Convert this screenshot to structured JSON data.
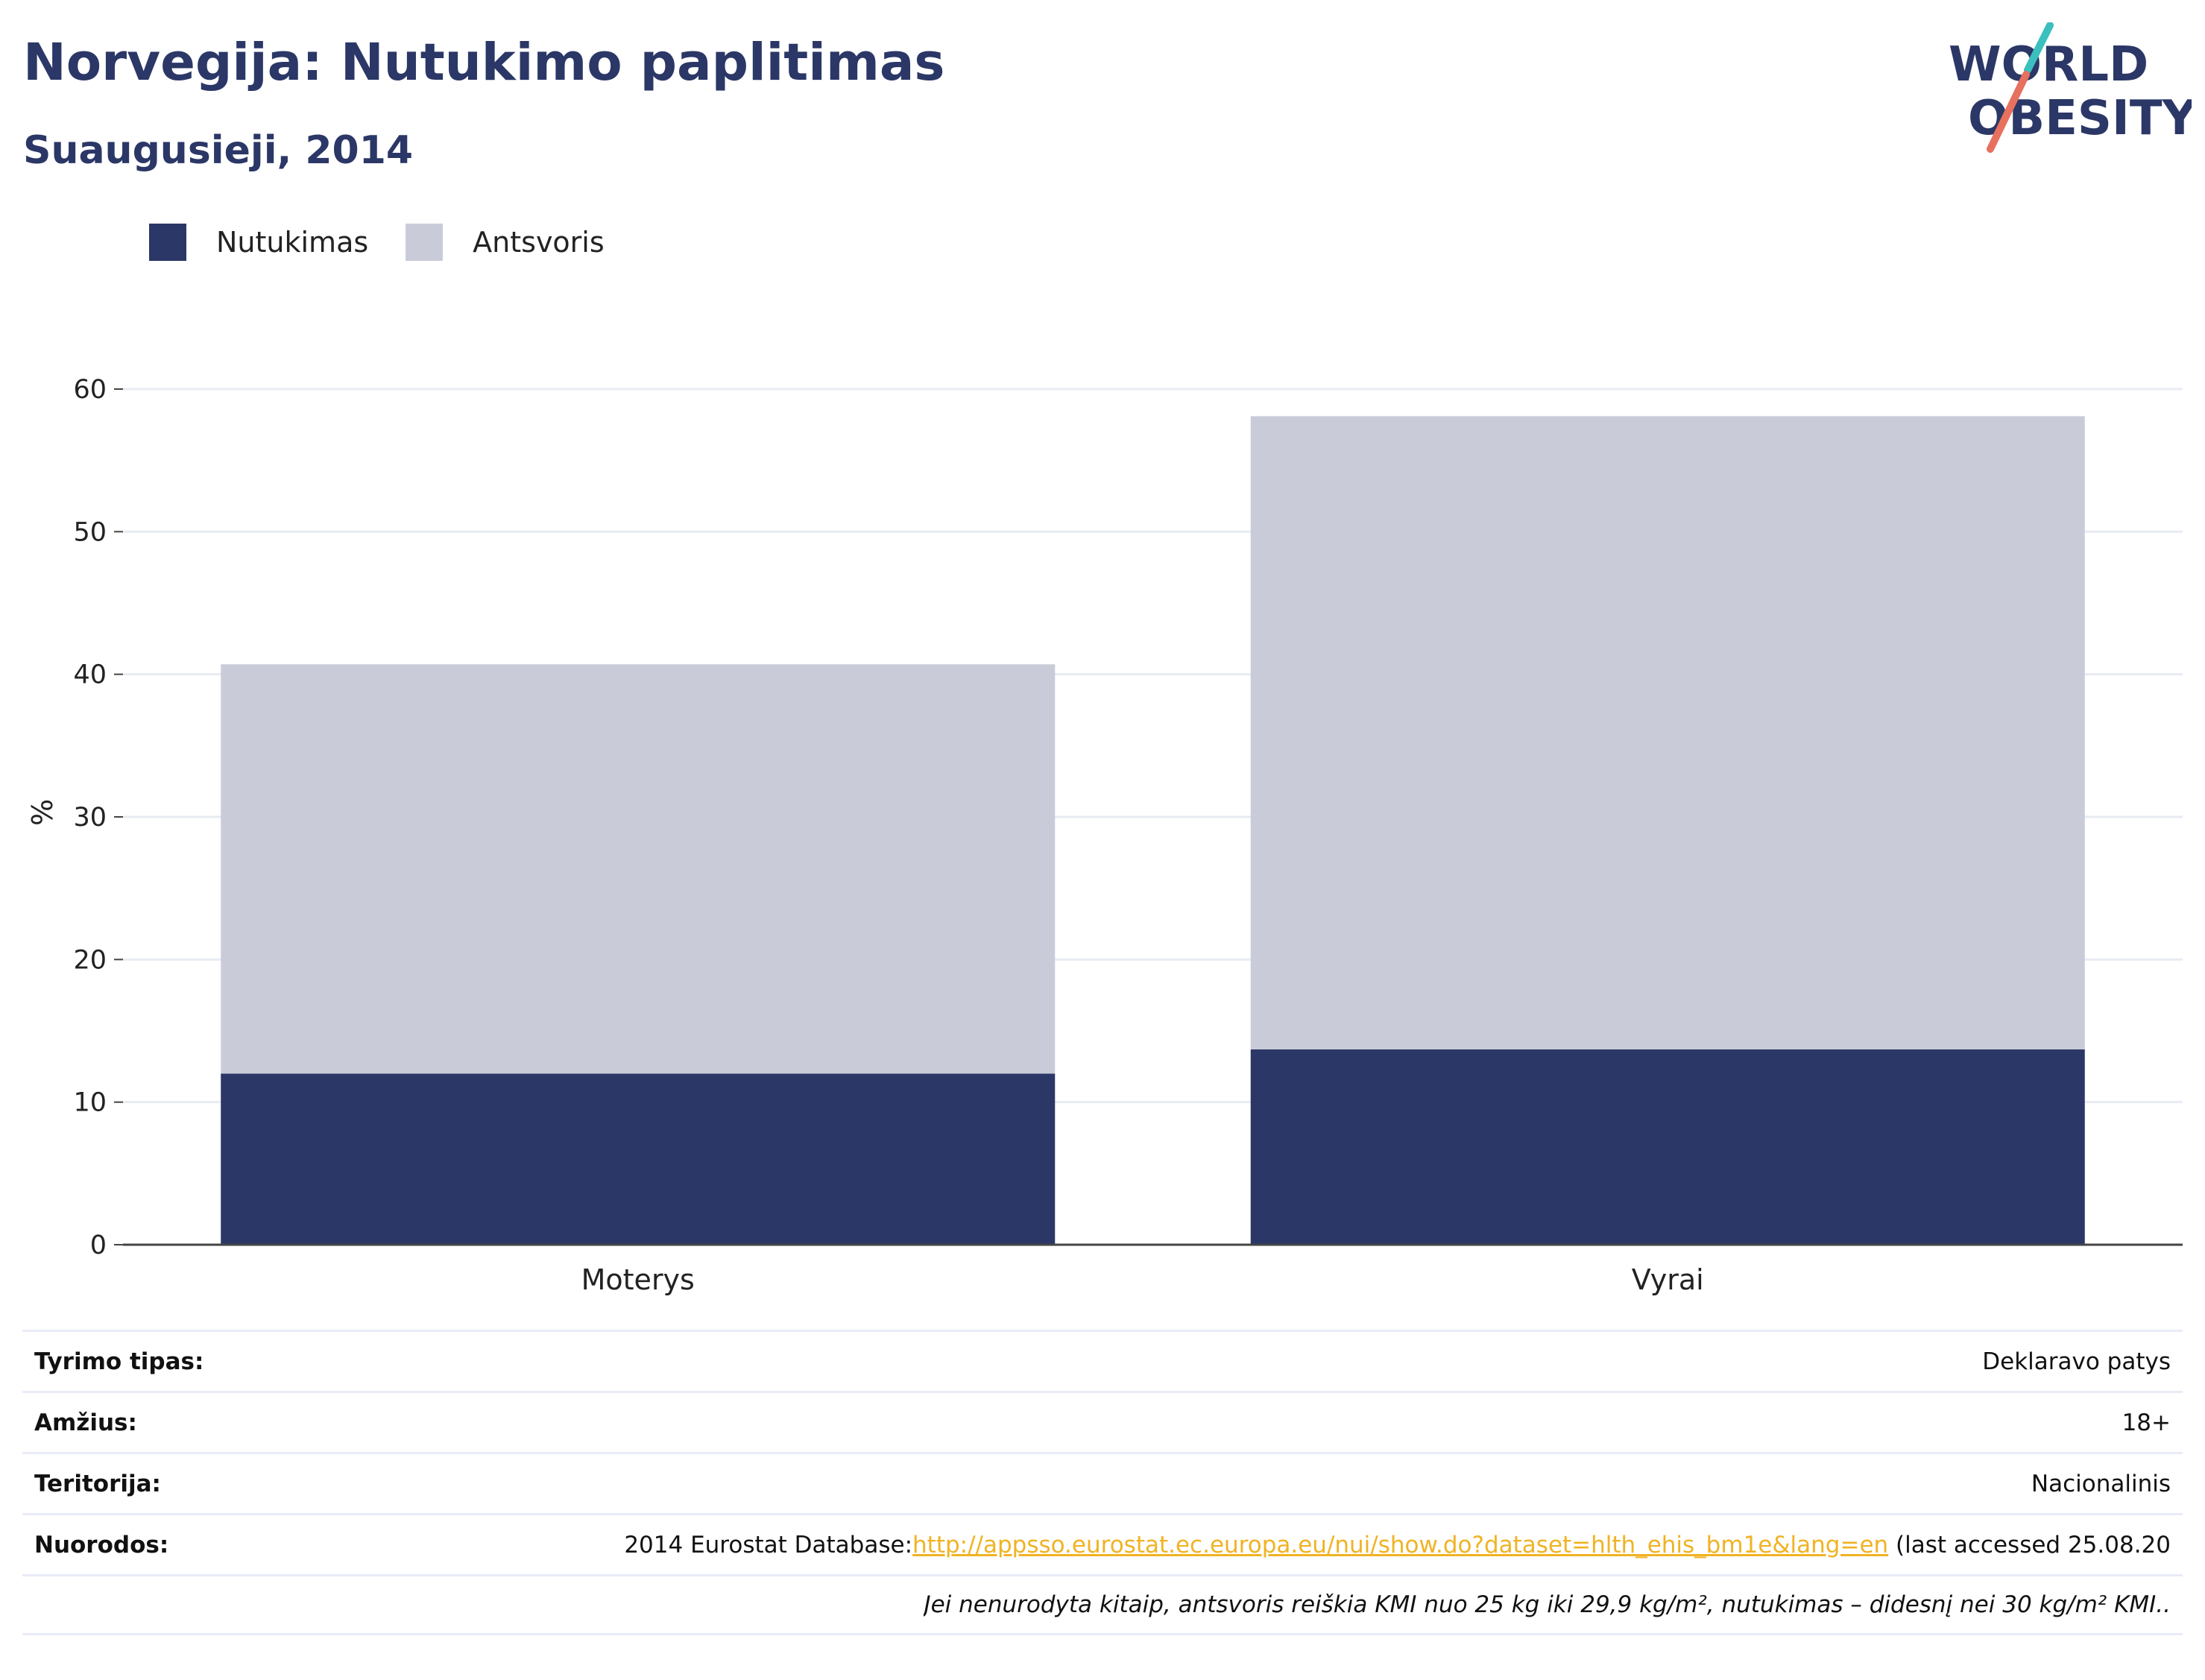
{
  "header": {
    "title": "Norvegija: Nutukimo paplitimas",
    "subtitle": "Suaugusieji, 2014"
  },
  "logo": {
    "line1": "WORLD",
    "line2": "OBESITY",
    "colors": {
      "text": "#2b3766",
      "slash_top": "#3bbfbf",
      "slash_bottom": "#e8705f"
    }
  },
  "legend": [
    {
      "label": "Nutukimas",
      "color": "#2b3766"
    },
    {
      "label": "Antsvoris",
      "color": "#c9ccd8"
    }
  ],
  "chart_data": {
    "type": "bar",
    "stacked": true,
    "categories": [
      "Moterys",
      "Vyrai"
    ],
    "series": [
      {
        "name": "Nutukimas",
        "color": "#2b3766",
        "values": [
          12.0,
          13.7
        ]
      },
      {
        "name": "Antsvoris",
        "color": "#c9ccd8",
        "values": [
          28.7,
          44.4
        ]
      }
    ],
    "ylabel": "%",
    "xlabel": "",
    "ylim": [
      0,
      60
    ],
    "yticks": [
      0,
      10,
      20,
      30,
      40,
      50,
      60
    ],
    "grid": true,
    "legend_position": "top-left"
  },
  "info": {
    "rows": [
      {
        "key": "Tyrimo tipas:",
        "value": "Deklaravo patys"
      },
      {
        "key": "Amžius:",
        "value": "18+"
      },
      {
        "key": "Teritorija:",
        "value": "Nacionalinis"
      }
    ],
    "reference": {
      "key": "Nuorodos:",
      "prefix": "2014 Eurostat Database:",
      "link": "http://appsso.eurostat.ec.europa.eu/nui/show.do?dataset=hlth_ehis_bm1e&lang=en",
      "suffix": " (last accessed 25.08.20"
    },
    "note": "Jei nenurodyta kitaip, antsvoris reiškia KMI nuo 25 kg iki 29,9 kg/m², nutukimas – didesnį nei 30 kg/m² KMI.."
  }
}
